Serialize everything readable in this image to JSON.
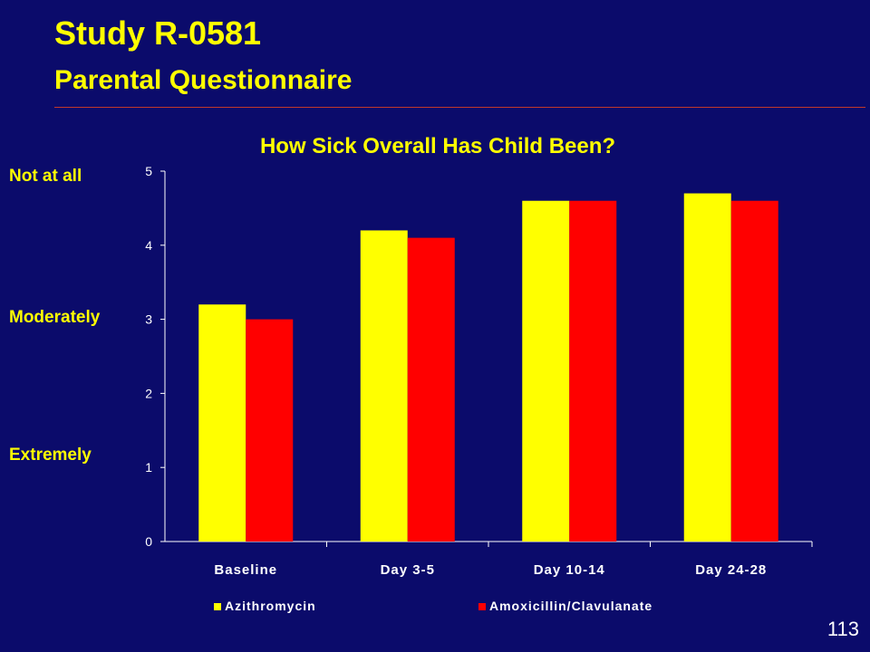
{
  "slide": {
    "title": "Study R-0581",
    "subtitle": "Parental Questionnaire",
    "page_number": "113",
    "scale_labels": [
      "Not at all",
      "Moderately",
      "Extremely"
    ]
  },
  "colors": {
    "background": "#0b0b6b",
    "title": "#ffff00",
    "azithromycin": "#ffff00",
    "amoxicillin_clavulanate": "#ff0000",
    "rule": "#c0392b"
  },
  "chart_data": {
    "type": "bar",
    "title": "How Sick Overall Has Child Been?",
    "categories": [
      "Baseline",
      "Day 3-5",
      "Day 10-14",
      "Day 24-28"
    ],
    "series": [
      {
        "name": "Azithromycin",
        "values": [
          3.2,
          4.2,
          4.6,
          4.7
        ]
      },
      {
        "name": "Amoxicillin/Clavulanate",
        "values": [
          3.0,
          4.1,
          4.6,
          4.6
        ]
      }
    ],
    "ylim": [
      0,
      5
    ],
    "yticks": [
      "0",
      "1",
      "2",
      "3",
      "4",
      "5"
    ],
    "grid": false,
    "legend": "bottom"
  }
}
